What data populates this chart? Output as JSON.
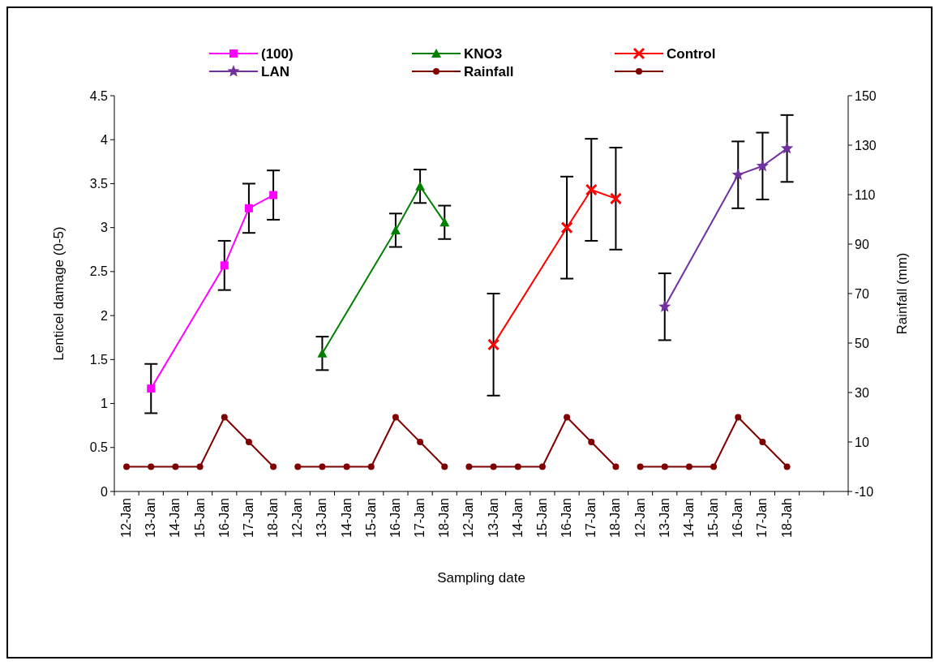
{
  "chart_data": {
    "type": "line",
    "xlabel": "Sampling date",
    "ylabel": "Lenticel damage (0-5)",
    "y2label": "Rainfall (mm)",
    "categories": [
      "12-Jan",
      "13-Jan",
      "14-Jan",
      "15-Jan",
      "16-Jan",
      "17-Jan",
      "18-Jan",
      "12-Jan",
      "13-Jan",
      "14-Jan",
      "15-Jan",
      "16-Jan",
      "17-Jan",
      "18-Jan",
      "12-Jan",
      "13-Jan",
      "14-Jan",
      "15-Jan",
      "16-Jan",
      "17-Jan",
      "18-Jan",
      "12-Jan",
      "13-Jan",
      "14-Jan",
      "15-Jan",
      "16-Jan",
      "17-Jan",
      "18-Jah",
      null,
      null
    ],
    "ylim": [
      0,
      4.5
    ],
    "yticks": [
      0,
      0.5,
      1,
      1.5,
      2,
      2.5,
      3,
      3.5,
      4,
      4.5
    ],
    "y2lim": [
      -10,
      150
    ],
    "y2ticks": [
      -10,
      10,
      30,
      50,
      70,
      90,
      110,
      130,
      150
    ],
    "legend": "top",
    "grid": false,
    "series": [
      {
        "name": "(100)",
        "color": "#ff00ff",
        "marker": "square",
        "values": [
          null,
          1.17,
          null,
          null,
          2.57,
          3.22,
          3.37,
          null,
          null,
          null,
          null,
          null,
          null,
          null,
          null,
          null,
          null,
          null,
          null,
          null,
          null,
          null,
          null,
          null,
          null,
          null,
          null,
          null,
          null,
          null
        ],
        "errors": [
          null,
          0.28,
          null,
          null,
          0.28,
          0.28,
          0.28,
          null,
          null,
          null,
          null,
          null,
          null,
          null,
          null,
          null,
          null,
          null,
          null,
          null,
          null,
          null,
          null,
          null,
          null,
          null,
          null,
          null,
          null,
          null
        ]
      },
      {
        "name": "KNO3",
        "color": "#008000",
        "marker": "triangle",
        "values": [
          null,
          null,
          null,
          null,
          null,
          null,
          null,
          null,
          1.57,
          null,
          null,
          2.97,
          3.47,
          3.06,
          null,
          null,
          null,
          null,
          null,
          null,
          null,
          null,
          null,
          null,
          null,
          null,
          null,
          null,
          null,
          null
        ],
        "errors": [
          null,
          null,
          null,
          null,
          null,
          null,
          null,
          null,
          0.19,
          null,
          null,
          0.19,
          0.19,
          0.19,
          null,
          null,
          null,
          null,
          null,
          null,
          null,
          null,
          null,
          null,
          null,
          null,
          null,
          null,
          null,
          null
        ]
      },
      {
        "name": "Control",
        "color": "#ff0000",
        "marker": "cross",
        "values": [
          null,
          null,
          null,
          null,
          null,
          null,
          null,
          null,
          null,
          null,
          null,
          null,
          null,
          null,
          null,
          1.67,
          null,
          null,
          3.0,
          3.43,
          3.33,
          null,
          null,
          null,
          null,
          null,
          null,
          null,
          null,
          null
        ],
        "errors": [
          null,
          null,
          null,
          null,
          null,
          null,
          null,
          null,
          null,
          null,
          null,
          null,
          null,
          null,
          null,
          0.58,
          null,
          null,
          0.58,
          0.58,
          0.58,
          null,
          null,
          null,
          null,
          null,
          null,
          null,
          null,
          null
        ]
      },
      {
        "name": "LAN",
        "color": "#7030a0",
        "marker": "star",
        "values": [
          null,
          null,
          null,
          null,
          null,
          null,
          null,
          null,
          null,
          null,
          null,
          null,
          null,
          null,
          null,
          null,
          null,
          null,
          null,
          null,
          null,
          null,
          2.1,
          null,
          null,
          3.6,
          3.7,
          3.9,
          null,
          null
        ],
        "errors": [
          null,
          null,
          null,
          null,
          null,
          null,
          null,
          null,
          null,
          null,
          null,
          null,
          null,
          null,
          null,
          null,
          null,
          null,
          null,
          null,
          null,
          null,
          0.38,
          null,
          null,
          0.38,
          0.38,
          0.38,
          null,
          null
        ]
      },
      {
        "name": "Rainfall",
        "color": "#800000",
        "marker": "circle",
        "axis": "y2",
        "values": [
          0,
          0,
          0,
          0,
          20,
          10,
          0,
          null,
          null,
          null,
          null,
          null,
          null,
          null,
          null,
          null,
          null,
          null,
          null,
          null,
          null,
          null,
          null,
          null,
          null,
          null,
          null,
          null,
          null,
          null
        ]
      },
      {
        "color": "#800000",
        "marker": "circle",
        "axis": "y2",
        "values": [
          null,
          null,
          null,
          null,
          null,
          null,
          null,
          0,
          0,
          0,
          0,
          20,
          10,
          0,
          null,
          null,
          null,
          null,
          null,
          null,
          null,
          null,
          null,
          null,
          null,
          null,
          null,
          null,
          null,
          null
        ]
      },
      {
        "color": "#800000",
        "marker": "circle",
        "axis": "y2",
        "values": [
          null,
          null,
          null,
          null,
          null,
          null,
          null,
          null,
          null,
          null,
          null,
          null,
          null,
          null,
          0,
          0,
          0,
          0,
          20,
          10,
          0,
          null,
          null,
          null,
          null,
          null,
          null,
          null,
          null,
          null
        ]
      },
      {
        "color": "#800000",
        "marker": "circle",
        "axis": "y2",
        "values": [
          null,
          null,
          null,
          null,
          null,
          null,
          null,
          null,
          null,
          null,
          null,
          null,
          null,
          null,
          null,
          null,
          null,
          null,
          null,
          null,
          null,
          0,
          0,
          0,
          0,
          20,
          10,
          0,
          null,
          null
        ]
      }
    ]
  }
}
